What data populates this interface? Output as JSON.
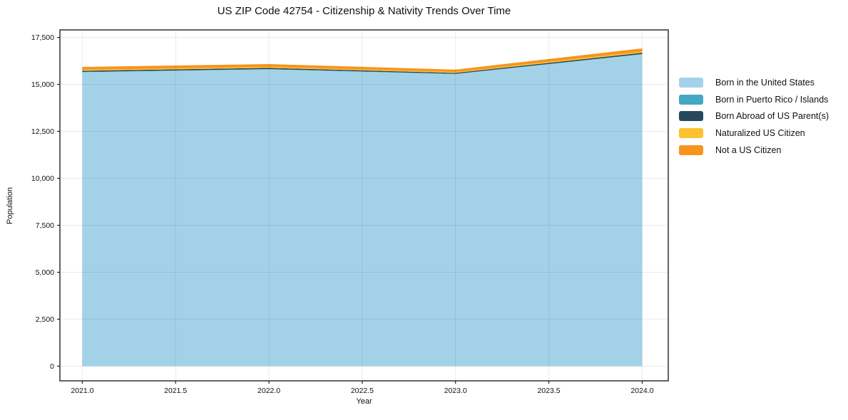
{
  "title": "US ZIP Code 42754 - Citizenship & Nativity Trends Over Time",
  "chart_data": {
    "type": "area",
    "stacked": true,
    "title": "US ZIP Code 42754 - Citizenship & Nativity Trends Over Time",
    "xlabel": "Year",
    "ylabel": "Population",
    "x": [
      2021,
      2022,
      2023,
      2024
    ],
    "series": [
      {
        "name": "Born in the United States",
        "color": "#a3d2e8",
        "values": [
          15650,
          15800,
          15550,
          16600
        ]
      },
      {
        "name": "Born in Puerto Rico / Islands",
        "color": "#44a7c4",
        "values": [
          15,
          15,
          10,
          15
        ]
      },
      {
        "name": "Born Abroad of US Parent(s)",
        "color": "#26485c",
        "values": [
          60,
          60,
          50,
          70
        ]
      },
      {
        "name": "Naturalized US Citizen",
        "color": "#fcc22d",
        "values": [
          55,
          55,
          45,
          60
        ]
      },
      {
        "name": "Not a US Citizen",
        "color": "#f7941e",
        "values": [
          150,
          150,
          130,
          170
        ]
      }
    ],
    "totals": [
      15930,
      16080,
      15785,
      16915
    ],
    "xlim": [
      2020.88,
      2024.14
    ],
    "ylim": [
      -780,
      17900
    ],
    "xticks": [
      2021.0,
      2021.5,
      2022.0,
      2022.5,
      2023.0,
      2023.5,
      2024.0
    ],
    "xtick_labels": [
      "2021.0",
      "2021.5",
      "2022.0",
      "2022.5",
      "2023.0",
      "2023.5",
      "2024.0"
    ],
    "yticks": [
      0,
      2500,
      5000,
      7500,
      10000,
      12500,
      15000,
      17500
    ],
    "ytick_labels": [
      "0",
      "2,500",
      "5,000",
      "7,500",
      "10,000",
      "12,500",
      "15,000",
      "17,500"
    ],
    "grid": true,
    "legend_position": "right-outside"
  }
}
